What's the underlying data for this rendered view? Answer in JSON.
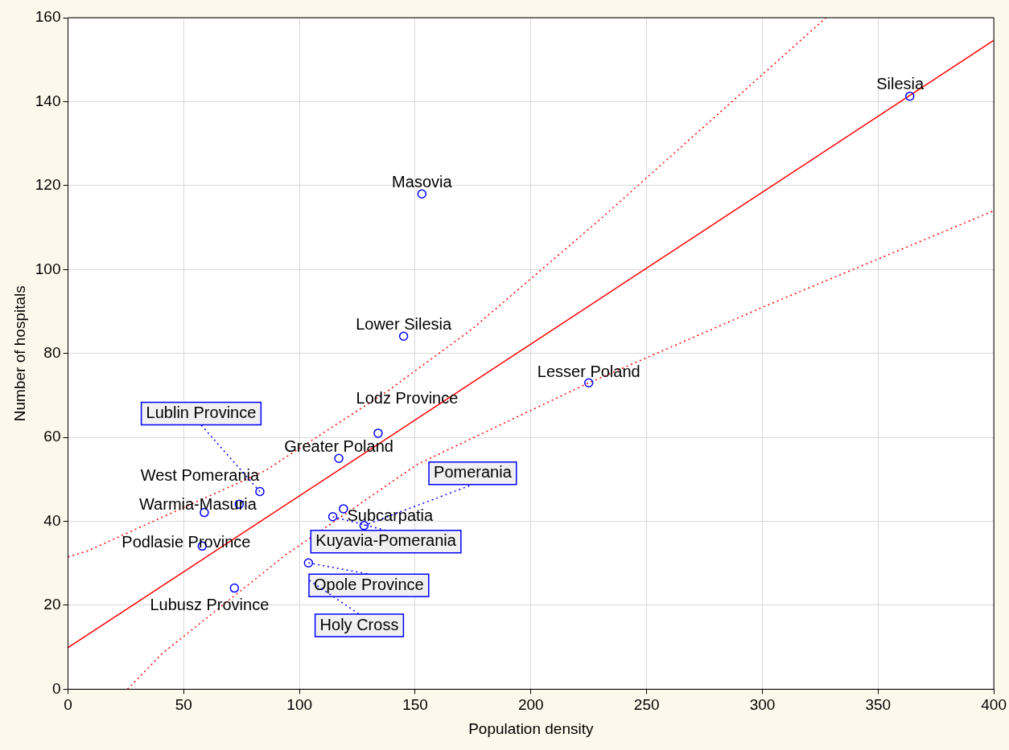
{
  "chart_data": {
    "type": "scatter",
    "xlabel": "Population density",
    "ylabel": "Number of hospitals",
    "xlim": [
      0,
      400
    ],
    "ylim": [
      0,
      160
    ],
    "xticks": [
      0,
      50,
      100,
      150,
      200,
      250,
      300,
      350,
      400
    ],
    "yticks": [
      0,
      20,
      40,
      60,
      80,
      100,
      120,
      140,
      160
    ],
    "grid": true,
    "marker": "circle",
    "series": [
      {
        "type": "scatter",
        "color": "#0000ff",
        "x": [
          363.7,
          152.9,
          145,
          225,
          134,
          117,
          74,
          58.9,
          82.9,
          58,
          71.9,
          119,
          114.4,
          127.9,
          103.9
        ],
        "values": [
          141.3,
          118,
          84.1,
          73,
          61,
          55,
          44.1,
          42.1,
          47.1,
          34.1,
          24.1,
          43,
          41.1,
          39,
          30.1
        ]
      },
      {
        "type": "line",
        "color": "#ff0000",
        "line_style": "solid",
        "marker": "none",
        "x": [
          0,
          400
        ],
        "values": [
          9.9,
          154.6
        ]
      },
      {
        "type": "line",
        "color": "#ff0000",
        "line_style": "dotted",
        "marker": "none",
        "x": [
          0,
          8.7,
          85,
          138,
          175,
          230,
          327.5
        ],
        "values": [
          31.5,
          33,
          52,
          71,
          86,
          112,
          160
        ]
      },
      {
        "type": "line",
        "color": "#ff0000",
        "line_style": "dotted",
        "marker": "none",
        "x": [
          25.7,
          40.7,
          94,
          151,
          225,
          300,
          400
        ],
        "values": [
          0,
          8.5,
          32,
          53.6,
          73,
          91,
          114
        ]
      }
    ],
    "annotations": [
      {
        "text": "Silesia",
        "x": 363.7,
        "y": 141.3
      },
      {
        "text": "Masovia",
        "x": 152.9,
        "y": 118
      },
      {
        "text": "Lower Silesia",
        "x": 145,
        "y": 84.1
      },
      {
        "text": "Lesser Poland",
        "x": 225,
        "y": 73
      },
      {
        "text": "Lodz Province",
        "x": 134,
        "y": 61
      },
      {
        "text": "Greater Poland",
        "x": 117,
        "y": 55
      },
      {
        "text": "West Pomerania",
        "x": 74,
        "y": 44.1
      },
      {
        "text": "Warmia-Masuria",
        "x": 58.9,
        "y": 42.1
      },
      {
        "text": "Lublin Province",
        "x": 82.9,
        "y": 47.1
      },
      {
        "text": "Podlasie Province",
        "x": 58,
        "y": 34.1
      },
      {
        "text": "Lubusz Province",
        "x": 71.9,
        "y": 24.1
      },
      {
        "text": "Subcarpatia",
        "x": 119,
        "y": 43
      },
      {
        "text": "Kuyavia-Pomerania",
        "x": 114.4,
        "y": 41.1
      },
      {
        "text": "Pomerania",
        "x": 127.9,
        "y": 39
      },
      {
        "text": "Opole Province",
        "x": 103.9,
        "y": 30.1
      },
      "Holy Cross"
    ]
  }
}
